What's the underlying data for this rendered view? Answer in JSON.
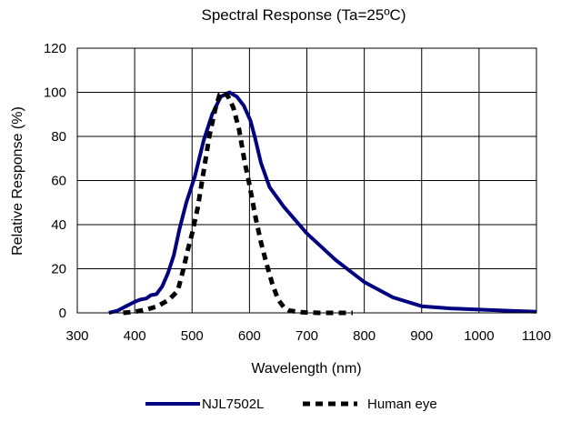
{
  "chart_data": {
    "type": "line",
    "title": "Spectral Response (Ta=25ºC)",
    "xlabel": "Wavelength (nm)",
    "ylabel": "Relative Response (%)",
    "xlim": [
      300,
      1100
    ],
    "ylim": [
      0,
      120
    ],
    "x_ticks": [
      300,
      400,
      500,
      600,
      700,
      800,
      900,
      1000,
      1100
    ],
    "y_ticks": [
      0,
      20,
      40,
      60,
      80,
      100,
      120
    ],
    "grid": true,
    "legend_position": "bottom",
    "series": [
      {
        "name": "NJL7502L",
        "color": "#000080",
        "style": "solid",
        "points": [
          [
            355,
            0
          ],
          [
            370,
            1
          ],
          [
            385,
            3
          ],
          [
            400,
            5
          ],
          [
            410,
            6
          ],
          [
            420,
            6.5
          ],
          [
            428,
            8
          ],
          [
            438,
            8.5
          ],
          [
            448,
            12
          ],
          [
            458,
            18
          ],
          [
            468,
            26
          ],
          [
            478,
            38
          ],
          [
            490,
            50
          ],
          [
            505,
            62
          ],
          [
            520,
            78
          ],
          [
            535,
            90
          ],
          [
            550,
            98
          ],
          [
            565,
            100
          ],
          [
            578,
            98
          ],
          [
            590,
            94
          ],
          [
            602,
            87
          ],
          [
            610,
            79
          ],
          [
            620,
            68
          ],
          [
            635,
            57
          ],
          [
            660,
            48
          ],
          [
            700,
            36
          ],
          [
            750,
            24
          ],
          [
            800,
            14
          ],
          [
            850,
            7
          ],
          [
            900,
            3
          ],
          [
            950,
            2
          ],
          [
            1000,
            1.5
          ],
          [
            1050,
            1
          ],
          [
            1100,
            0.5
          ]
        ]
      },
      {
        "name": "Human eye",
        "color": "#000000",
        "style": "dashed",
        "points": [
          [
            380,
            0
          ],
          [
            400,
            0.5
          ],
          [
            420,
            1.5
          ],
          [
            440,
            3
          ],
          [
            460,
            6
          ],
          [
            475,
            10
          ],
          [
            485,
            20
          ],
          [
            492,
            28
          ],
          [
            500,
            36
          ],
          [
            510,
            48
          ],
          [
            520,
            64
          ],
          [
            530,
            80
          ],
          [
            540,
            92
          ],
          [
            548,
            99
          ],
          [
            555,
            100
          ],
          [
            563,
            98
          ],
          [
            572,
            93
          ],
          [
            582,
            83
          ],
          [
            592,
            68
          ],
          [
            600,
            58
          ],
          [
            610,
            44
          ],
          [
            620,
            32
          ],
          [
            630,
            22
          ],
          [
            640,
            13
          ],
          [
            650,
            6
          ],
          [
            660,
            2.5
          ],
          [
            670,
            1
          ],
          [
            690,
            0.3
          ],
          [
            720,
            0
          ],
          [
            780,
            0
          ]
        ]
      }
    ]
  }
}
